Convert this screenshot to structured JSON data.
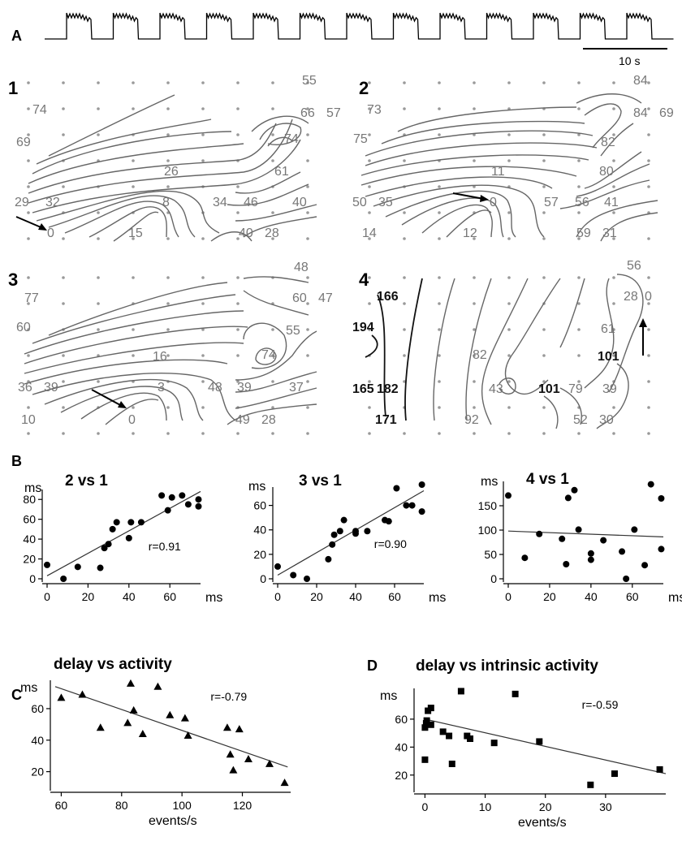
{
  "panel_a": {
    "letter": "A",
    "scale_label": "10 s",
    "n_bursts": 13
  },
  "panel_b_letter": "B",
  "maps": [
    {
      "number": "1",
      "labels": [
        "55",
        "74",
        "66",
        "57",
        "69",
        "74",
        "26",
        "61",
        "29",
        "32",
        "8",
        "34",
        "46",
        "40",
        "0",
        "15",
        "40",
        "28"
      ]
    },
    {
      "number": "2",
      "labels": [
        "84",
        "73",
        "84",
        "69",
        "75",
        "82",
        "80",
        "11",
        "50",
        "35",
        "0",
        "57",
        "56",
        "41",
        "14",
        "12",
        "59",
        "31"
      ]
    },
    {
      "number": "3",
      "labels": [
        "48",
        "77",
        "60",
        "47",
        "60",
        "55",
        "74",
        "16",
        "36",
        "39",
        "3",
        "48",
        "39",
        "37",
        "10",
        "0",
        "49",
        "28"
      ]
    },
    {
      "number": "4",
      "labels": [
        "56",
        "166",
        "28",
        "0",
        "194",
        "61",
        "82",
        "101",
        "165",
        "182",
        "43",
        "101",
        "79",
        "39",
        "171",
        "92",
        "52",
        "30"
      ]
    }
  ],
  "chart_data": [
    {
      "type": "scatter",
      "panel": "B",
      "title": "2 vs 1",
      "ylabel": "ms",
      "xlabel": "ms",
      "xlim": [
        0,
        75
      ],
      "ylim": [
        0,
        90
      ],
      "xticks": [
        0,
        20,
        40,
        60
      ],
      "yticks": [
        0,
        20,
        40,
        60,
        80
      ],
      "annotation": "r=0.91",
      "fit": {
        "x": [
          0,
          75
        ],
        "y": [
          3,
          88
        ]
      },
      "points": {
        "x": [
          0,
          8,
          15,
          26,
          28,
          30,
          32,
          34,
          40,
          41,
          46,
          56,
          59,
          61,
          66,
          69,
          74,
          74
        ],
        "y": [
          14,
          0,
          12,
          11,
          31,
          35,
          50,
          57,
          41,
          57,
          57,
          84,
          69,
          82,
          84,
          75,
          73,
          80
        ]
      }
    },
    {
      "type": "scatter",
      "panel": "B",
      "title": "3 vs 1",
      "ylabel": "ms",
      "xlabel": "ms",
      "xlim": [
        0,
        75
      ],
      "ylim": [
        0,
        75
      ],
      "xticks": [
        0,
        20,
        40,
        60
      ],
      "yticks": [
        0,
        20,
        40,
        60
      ],
      "annotation": "r=0.90",
      "fit": {
        "x": [
          0,
          75
        ],
        "y": [
          3,
          72
        ]
      },
      "points": {
        "x": [
          0,
          8,
          15,
          26,
          28,
          29,
          32,
          34,
          40,
          40,
          46,
          55,
          57,
          61,
          66,
          69,
          74,
          74
        ],
        "y": [
          10,
          3,
          0,
          16,
          28,
          36,
          39,
          48,
          37,
          39,
          39,
          48,
          47,
          74,
          60,
          60,
          55,
          77
        ]
      }
    },
    {
      "type": "scatter",
      "panel": "B",
      "title": "4 vs 1",
      "ylabel": "ms",
      "xlabel": "ms",
      "xlim": [
        0,
        75
      ],
      "ylim": [
        0,
        200
      ],
      "xticks": [
        0,
        20,
        40,
        60
      ],
      "yticks": [
        0,
        50,
        100,
        150
      ],
      "fit": {
        "x": [
          0,
          75
        ],
        "y": [
          98,
          86
        ]
      },
      "points": {
        "x": [
          0,
          8,
          15,
          26,
          28,
          29,
          32,
          34,
          40,
          40,
          46,
          55,
          57,
          61,
          66,
          69,
          74,
          74
        ],
        "y": [
          171,
          43,
          92,
          82,
          30,
          166,
          182,
          101,
          52,
          39,
          79,
          56,
          0,
          101,
          28,
          194,
          165,
          61
        ]
      }
    },
    {
      "type": "scatter",
      "panel": "C",
      "title": "delay vs activity",
      "ylabel": "ms",
      "xlabel": "events/s",
      "xlim": [
        58,
        136
      ],
      "ylim": [
        10,
        78
      ],
      "xticks": [
        60,
        80,
        100,
        120
      ],
      "yticks": [
        20,
        40,
        60
      ],
      "annotation": "r=-0.79",
      "marker": "triangle",
      "fit": {
        "x": [
          58,
          135
        ],
        "y": [
          74,
          23
        ]
      },
      "points": {
        "x": [
          60,
          67,
          73,
          82,
          83,
          84,
          87,
          92,
          96,
          101,
          102,
          115,
          116,
          117,
          119,
          122,
          129,
          134
        ],
        "y": [
          67,
          69,
          48,
          51,
          76,
          59,
          44,
          74,
          56,
          54,
          43,
          48,
          31,
          21,
          47,
          28,
          25,
          13
        ]
      }
    },
    {
      "type": "scatter",
      "panel": "D",
      "title": "delay vs intrinsic activity",
      "ylabel": "ms",
      "xlabel": "events/s",
      "xlim": [
        -1,
        40
      ],
      "ylim": [
        10,
        82
      ],
      "xticks": [
        0,
        10,
        20,
        30
      ],
      "yticks": [
        20,
        40,
        60
      ],
      "annotation": "r=-0.59",
      "marker": "square",
      "fit": {
        "x": [
          0,
          40
        ],
        "y": [
          60,
          21
        ]
      },
      "points": {
        "x": [
          0,
          0,
          0.2,
          0.3,
          0.5,
          1,
          1,
          3,
          4,
          4.5,
          6,
          7,
          7.5,
          11.5,
          15,
          19,
          27.5,
          31.5,
          39
        ],
        "y": [
          31,
          54,
          57,
          59,
          66,
          68,
          56,
          51,
          48,
          28,
          80,
          48,
          46,
          43,
          78,
          44,
          13,
          21,
          24
        ]
      }
    }
  ]
}
